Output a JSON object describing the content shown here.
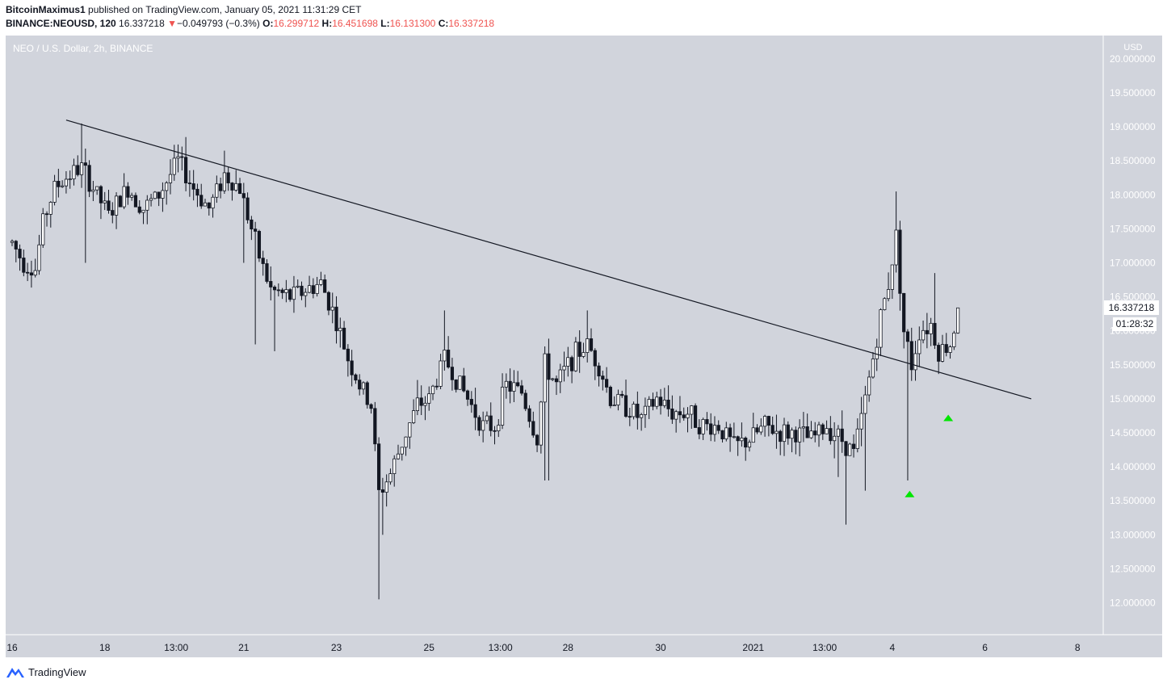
{
  "header": {
    "author": "BitcoinMaximus1",
    "published_text": "published on TradingView.com, January 05, 2021 11:31:29 CET",
    "symbol": "BINANCE:NEOUSD, 120",
    "last_price": "16.337218",
    "change_arrow": "▼",
    "change": "−0.049793 (−0.3%)",
    "o_label": "O:",
    "o_value": "16.299712",
    "h_label": "H:",
    "h_value": "16.451698",
    "l_label": "L:",
    "l_value": "16.131300",
    "c_label": "C:",
    "c_value": "16.337218"
  },
  "legend": "NEO / U.S. Dollar, 2h, BINANCE",
  "price_tag": "16.337218",
  "countdown": "01:28:32",
  "footer_brand": "TradingView",
  "colors": {
    "background": "#d1d4dc",
    "candle": "#131722",
    "trendline": "#131722",
    "marker": "#00e600",
    "down": "#ef5350"
  },
  "chart_data": {
    "type": "candlestick",
    "currency_label": "USD",
    "ylim": [
      11.75,
      20.1
    ],
    "y_ticks": [
      "12.000000",
      "12.500000",
      "13.000000",
      "13.500000",
      "14.000000",
      "14.500000",
      "15.000000",
      "15.500000",
      "16.000000",
      "16.500000",
      "17.000000",
      "17.500000",
      "18.000000",
      "18.500000",
      "19.000000",
      "19.500000",
      "20.000000"
    ],
    "x_ticks": [
      {
        "label": "16",
        "t": 0
      },
      {
        "label": "18",
        "t": 24
      },
      {
        "label": "13:00",
        "t": 42.5
      },
      {
        "label": "21",
        "t": 60
      },
      {
        "label": "23",
        "t": 84
      },
      {
        "label": "25",
        "t": 108
      },
      {
        "label": "13:00",
        "t": 126.5
      },
      {
        "label": "28",
        "t": 144
      },
      {
        "label": "30",
        "t": 168
      },
      {
        "label": "2021",
        "t": 192
      },
      {
        "label": "13:00",
        "t": 210.5
      },
      {
        "label": "4",
        "t": 228
      },
      {
        "label": "6",
        "t": 252
      },
      {
        "label": "8",
        "t": 276
      }
    ],
    "trendline": {
      "t1": 14,
      "y1": 19.1,
      "t2": 264,
      "y2": 15.0
    },
    "markers": [
      {
        "type": "up-triangle",
        "t": 232.5,
        "y": 13.6
      },
      {
        "type": "up-triangle",
        "t": 242.5,
        "y": 14.72
      }
    ],
    "anchors": [
      [
        0,
        17.3
      ],
      [
        3,
        17.0
      ],
      [
        6,
        16.9
      ],
      [
        8,
        17.6
      ],
      [
        11,
        18.1
      ],
      [
        15,
        18.3
      ],
      [
        18,
        18.4
      ],
      [
        22,
        18.0
      ],
      [
        25,
        17.7
      ],
      [
        30,
        18.1
      ],
      [
        34,
        17.8
      ],
      [
        38,
        18.0
      ],
      [
        43,
        18.5
      ],
      [
        47,
        18.1
      ],
      [
        51,
        17.8
      ],
      [
        55,
        18.3
      ],
      [
        59,
        18.1
      ],
      [
        61,
        17.7
      ],
      [
        64,
        17.1
      ],
      [
        67,
        16.6
      ],
      [
        72,
        16.5
      ],
      [
        76,
        16.6
      ],
      [
        80,
        16.7
      ],
      [
        83,
        16.3
      ],
      [
        87,
        15.6
      ],
      [
        90,
        15.2
      ],
      [
        93,
        14.9
      ],
      [
        95,
        13.6
      ],
      [
        98,
        13.9
      ],
      [
        102,
        14.5
      ],
      [
        105,
        14.9
      ],
      [
        108,
        15.0
      ],
      [
        112,
        15.6
      ],
      [
        116,
        15.2
      ],
      [
        119,
        14.9
      ],
      [
        122,
        14.6
      ],
      [
        125,
        14.6
      ],
      [
        128,
        15.2
      ],
      [
        132,
        15.1
      ],
      [
        136,
        14.4
      ],
      [
        138,
        15.5
      ],
      [
        141,
        15.2
      ],
      [
        145,
        15.6
      ],
      [
        149,
        15.8
      ],
      [
        152,
        15.5
      ],
      [
        155,
        15.0
      ],
      [
        159,
        14.9
      ],
      [
        163,
        14.7
      ],
      [
        167,
        15.0
      ],
      [
        171,
        14.8
      ],
      [
        175,
        14.8
      ],
      [
        179,
        14.6
      ],
      [
        183,
        14.6
      ],
      [
        187,
        14.3
      ],
      [
        191,
        14.4
      ],
      [
        195,
        14.6
      ],
      [
        199,
        14.5
      ],
      [
        203,
        14.5
      ],
      [
        207,
        14.4
      ],
      [
        211,
        14.6
      ],
      [
        215,
        14.4
      ],
      [
        218,
        14.2
      ],
      [
        220,
        14.7
      ],
      [
        222,
        15.3
      ],
      [
        225,
        16.2
      ],
      [
        227,
        16.7
      ],
      [
        229,
        17.4
      ],
      [
        231,
        16.0
      ],
      [
        233,
        15.5
      ],
      [
        235,
        16.0
      ],
      [
        238,
        16.1
      ],
      [
        240,
        15.7
      ],
      [
        243,
        15.8
      ],
      [
        245,
        16.3
      ]
    ],
    "spikes": [
      {
        "t": 18,
        "high": 19.05
      },
      {
        "t": 19,
        "low": 17.0
      },
      {
        "t": 45,
        "high": 18.85
      },
      {
        "t": 55,
        "high": 18.65
      },
      {
        "t": 60,
        "low": 17.0
      },
      {
        "t": 63,
        "low": 15.8
      },
      {
        "t": 68,
        "low": 15.7
      },
      {
        "t": 95,
        "low": 12.05
      },
      {
        "t": 96,
        "low": 13.0
      },
      {
        "t": 112,
        "high": 16.3
      },
      {
        "t": 138,
        "low": 13.8
      },
      {
        "t": 139,
        "low": 13.8
      },
      {
        "t": 149,
        "high": 16.3
      },
      {
        "t": 214,
        "low": 13.85
      },
      {
        "t": 216,
        "low": 13.15
      },
      {
        "t": 221,
        "low": 13.65
      },
      {
        "t": 229,
        "high": 18.05
      },
      {
        "t": 232,
        "low": 13.8
      },
      {
        "t": 239,
        "high": 16.85
      }
    ]
  }
}
